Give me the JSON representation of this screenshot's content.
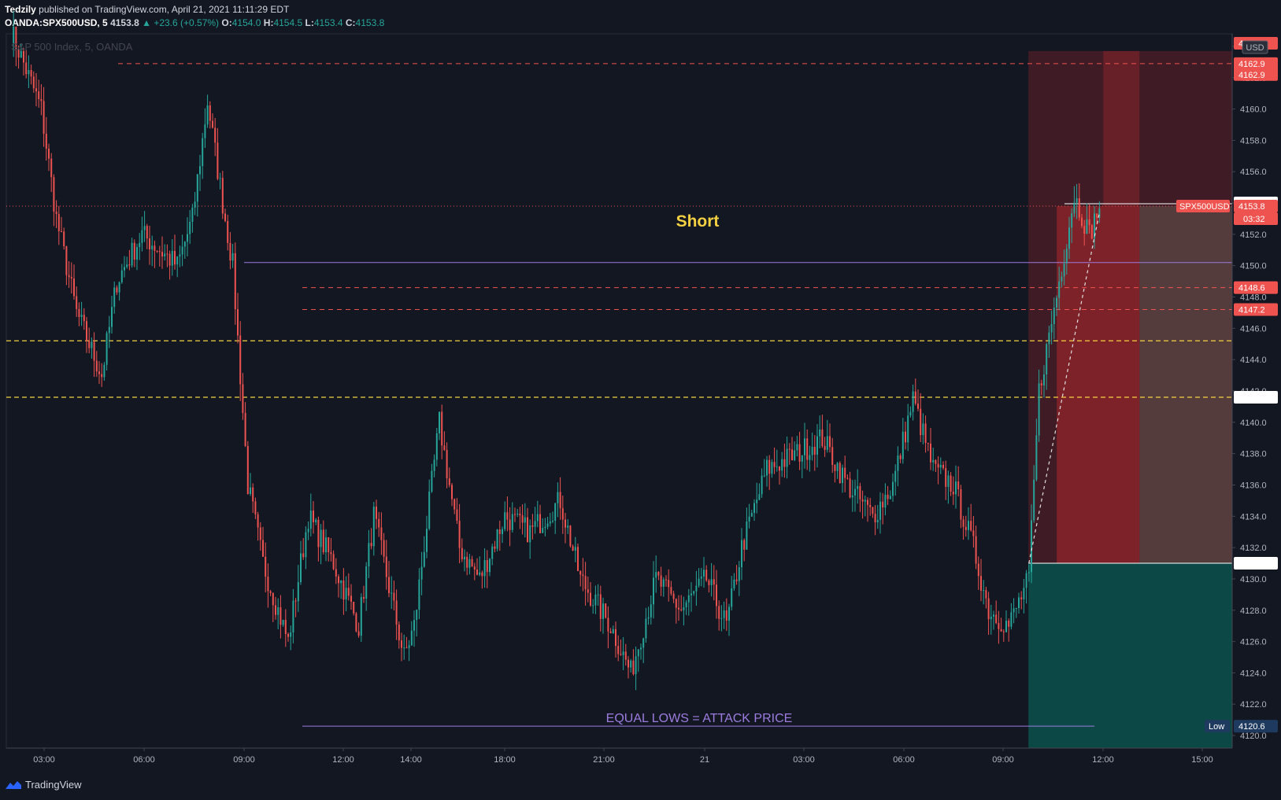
{
  "header": {
    "author": "Tedzily",
    "published": "published on TradingView.com, April 21, 2021 11:11:29 EDT",
    "symbol": "OANDA:SPX500USD, 5",
    "last": "4153.8",
    "change": "▲ +23.6 (+0.57%)",
    "o_label": "O:",
    "o": "4154.0",
    "h_label": "H:",
    "h": "4154.5",
    "l_label": "L:",
    "l": "4153.4",
    "c_label": "C:",
    "c": "4153.8"
  },
  "footer": {
    "brand": "TradingView"
  },
  "colors": {
    "background": "#131722",
    "up": "#26a69a",
    "down": "#ef5350",
    "stop_zone": "#b2282e",
    "target_zone": "#0b5a52",
    "level_red": "#ef5350",
    "level_yellow": "#f5d142",
    "level_purple": "#9c7ce0",
    "short_text": "#f5d142"
  },
  "chart_data": {
    "type": "candlestick",
    "title": "S&P 500 Index, 5, OANDA",
    "currency": "USD",
    "ylim": [
      4119.2,
      4164.8
    ],
    "y_ticks": [
      4120,
      4122,
      4124,
      4126,
      4128,
      4130,
      4132,
      4134,
      4136,
      4138,
      4140,
      4142,
      4144,
      4146,
      4148,
      4150,
      4152,
      4154,
      4156,
      4158,
      4160,
      4162,
      4164
    ],
    "x_ticks": [
      "03:00",
      "06:00",
      "09:00",
      "12:00",
      "14:00",
      "18:00",
      "21:00",
      "21",
      "03:00",
      "06:00",
      "09:00",
      "12:00",
      "15:00"
    ],
    "anchors": [
      [
        0,
        4165.0
      ],
      [
        12,
        4160.0
      ],
      [
        18,
        4153.0
      ],
      [
        26,
        4147.0
      ],
      [
        36,
        4143.0
      ],
      [
        42,
        4149.0
      ],
      [
        52,
        4152.0
      ],
      [
        66,
        4150.0
      ],
      [
        72,
        4153.0
      ],
      [
        78,
        4160.5
      ],
      [
        84,
        4154.0
      ],
      [
        88,
        4150.0
      ],
      [
        94,
        4136.0
      ],
      [
        100,
        4131.0
      ],
      [
        106,
        4128.0
      ],
      [
        110,
        4126.0
      ],
      [
        118,
        4134.0
      ],
      [
        128,
        4131.0
      ],
      [
        138,
        4127.0
      ],
      [
        144,
        4134.0
      ],
      [
        156,
        4125.0
      ],
      [
        160,
        4127.0
      ],
      [
        170,
        4140.0
      ],
      [
        178,
        4132.0
      ],
      [
        186,
        4130.0
      ],
      [
        196,
        4134.0
      ],
      [
        206,
        4133.0
      ],
      [
        218,
        4135.0
      ],
      [
        226,
        4130.0
      ],
      [
        238,
        4127.0
      ],
      [
        246,
        4124.0
      ],
      [
        256,
        4130.0
      ],
      [
        266,
        4128.0
      ],
      [
        276,
        4130.0
      ],
      [
        284,
        4127.0
      ],
      [
        290,
        4132.0
      ],
      [
        300,
        4137.0
      ],
      [
        312,
        4138.0
      ],
      [
        322,
        4139.0
      ],
      [
        332,
        4136.0
      ],
      [
        342,
        4134.0
      ],
      [
        350,
        4136.0
      ],
      [
        358,
        4141.5
      ],
      [
        366,
        4137.0
      ],
      [
        374,
        4136.0
      ],
      [
        382,
        4132.0
      ],
      [
        388,
        4128.0
      ],
      [
        396,
        4127.0
      ],
      [
        404,
        4130.0
      ],
      [
        408,
        4142.0
      ],
      [
        416,
        4149.0
      ],
      [
        422,
        4154.5
      ],
      [
        428,
        4152.0
      ],
      [
        432,
        4153.8
      ]
    ],
    "levels": [
      {
        "name": "resistance-4162-9",
        "value": 4162.9,
        "style": "dashed-red",
        "tag": "4162.9"
      },
      {
        "name": "resistance-4148-6",
        "value": 4148.6,
        "style": "dashed-red",
        "tag": "4148.6"
      },
      {
        "name": "resistance-4147-2",
        "value": 4147.2,
        "style": "dashed-red",
        "tag": "4147.2"
      },
      {
        "name": "yellow-level-upper",
        "value": 4145.2,
        "style": "dashed-yellow",
        "tag": ""
      },
      {
        "name": "yellow-level-lower",
        "value": 4141.6,
        "style": "dashed-yellow",
        "tag": "4141.6"
      },
      {
        "name": "purple-level-4150",
        "value": 4150.2,
        "style": "solid-purple",
        "tag": ""
      },
      {
        "name": "equal-lows",
        "value": 4120.6,
        "style": "solid-purple",
        "tag": "4120.6"
      },
      {
        "name": "entry-4131",
        "value": 4131.0,
        "style": "solid-white",
        "tag": "4131.0"
      }
    ],
    "position": {
      "side": "Short",
      "entry": 4131.0,
      "stop": 4163.7,
      "target_bottom": 4119.2,
      "inner_stop": 4153.8,
      "current": 4153.8
    },
    "price_tags": {
      "top": "4164.2",
      "upper": "4162.9",
      "second": "4162.9",
      "upper_b": "4154.0",
      "symbol": "SPX500USD",
      "last": "4153.8",
      "countdown": "03:32",
      "low_label": "Low"
    },
    "annotations": {
      "short": "Short",
      "equal_lows": "EQUAL LOWS = ATTACK PRICE"
    }
  }
}
